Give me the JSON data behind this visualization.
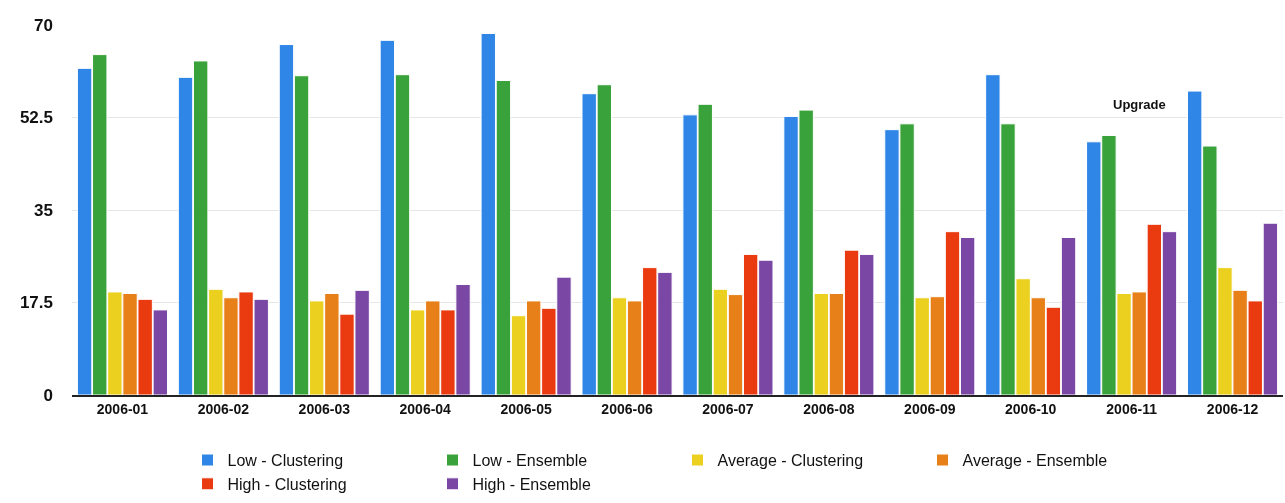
{
  "chart_data": {
    "type": "bar",
    "categories": [
      "2006-01",
      "2006-02",
      "2006-03",
      "2006-04",
      "2006-05",
      "2006-06",
      "2006-07",
      "2006-08",
      "2006-09",
      "2006-10",
      "2006-11",
      "2006-12"
    ],
    "series": [
      {
        "name": "Low - Clustering",
        "color": "#2f86e6",
        "values": [
          61.8,
          60.1,
          66.3,
          67.1,
          68.4,
          57.0,
          53.0,
          52.7,
          50.2,
          60.6,
          47.9,
          57.5
        ]
      },
      {
        "name": "Low - Ensemble",
        "color": "#3aa23a",
        "values": [
          64.4,
          63.2,
          60.4,
          60.6,
          59.5,
          58.7,
          55.0,
          53.9,
          51.3,
          51.3,
          49.1,
          47.1
        ]
      },
      {
        "name": "Average - Clustering",
        "color": "#ecd020",
        "values": [
          19.5,
          20.0,
          17.8,
          16.1,
          15.0,
          18.4,
          20.0,
          19.2,
          18.4,
          22.0,
          19.2,
          24.1
        ]
      },
      {
        "name": "Average - Ensemble",
        "color": "#e8801a",
        "values": [
          19.2,
          18.4,
          19.2,
          17.8,
          17.8,
          17.8,
          19.0,
          19.2,
          18.6,
          18.4,
          19.5,
          19.8
        ]
      },
      {
        "name": "High - Clustering",
        "color": "#ea3a10",
        "values": [
          18.1,
          19.5,
          15.3,
          16.1,
          16.4,
          24.1,
          26.6,
          27.4,
          30.9,
          16.6,
          32.3,
          17.8
        ]
      },
      {
        "name": "High - Ensemble",
        "color": "#7a48a4",
        "values": [
          16.1,
          18.1,
          19.8,
          20.9,
          22.3,
          23.2,
          25.5,
          26.6,
          29.8,
          29.8,
          30.9,
          32.5
        ]
      }
    ],
    "ylim": [
      0,
      70
    ],
    "yticks": [
      0,
      17.5,
      35,
      52.5,
      70
    ],
    "grid": "y",
    "legend": "bottom",
    "annotations": [
      "Upgrade"
    ]
  }
}
